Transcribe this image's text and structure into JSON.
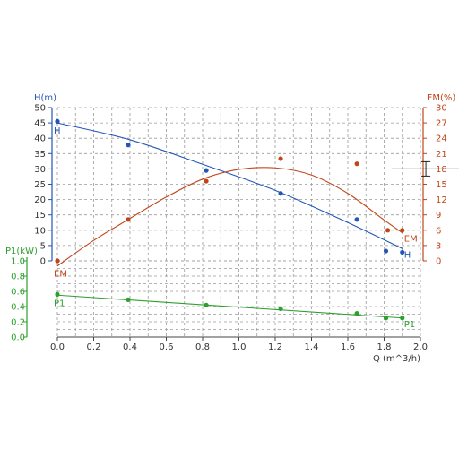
{
  "chart_data": {
    "type": "line",
    "xlabel": "Q (m^3/h)",
    "xlim": [
      0.0,
      2.0
    ],
    "xticks": [
      "0.0",
      "0.2",
      "0.4",
      "0.6",
      "0.8",
      "1.0",
      "1.2",
      "1.4",
      "1.6",
      "1.8",
      "2.0"
    ],
    "grid": true,
    "axes": {
      "H": {
        "label": "H(m)",
        "lim": [
          0,
          50
        ],
        "ticks": [
          "0",
          "5",
          "10",
          "15",
          "20",
          "25",
          "30",
          "35",
          "40",
          "45",
          "50"
        ],
        "color": "#2457b3"
      },
      "EM": {
        "label": "EM(%)",
        "lim": [
          0,
          30
        ],
        "ticks": [
          "0",
          "3",
          "6",
          "9",
          "12",
          "15",
          "18",
          "21",
          "24",
          "27",
          "30"
        ],
        "color": "#c0461a"
      },
      "P1": {
        "label": "P1(kW)",
        "lim": [
          0.0,
          1.0
        ],
        "ticks": [
          "0.0",
          "0.2",
          "0.4",
          "0.6",
          "0.8",
          "1.0"
        ],
        "color": "#2ca02c"
      }
    },
    "series": [
      {
        "name": "H",
        "axis": "H",
        "color": "#2457b3",
        "start_label": "H",
        "end_label": "H",
        "curve": {
          "x": [
            0.0,
            0.4,
            0.8,
            1.2,
            1.6,
            1.9
          ],
          "y": [
            45,
            39.5,
            31.5,
            23,
            12.5,
            4
          ]
        },
        "points": {
          "x": [
            0.0,
            0.39,
            0.82,
            1.23,
            1.65,
            1.81,
            1.9
          ],
          "y": [
            45.5,
            37.8,
            29.5,
            22.0,
            13.5,
            3.2,
            2.8
          ]
        }
      },
      {
        "name": "EM",
        "axis": "EM",
        "color": "#c0461a",
        "start_label": "EM",
        "end_label": "EM",
        "curve": {
          "x": [
            0.0,
            0.2,
            0.4,
            0.6,
            0.8,
            1.0,
            1.2,
            1.4,
            1.6,
            1.8,
            1.9
          ],
          "y": [
            -1.0,
            4.0,
            8.3,
            12.5,
            16.0,
            17.9,
            18.2,
            16.8,
            13.2,
            8.0,
            5.5
          ]
        },
        "points": {
          "x": [
            0.0,
            0.39,
            0.82,
            1.23,
            1.65,
            1.82,
            1.9
          ],
          "y": [
            0.0,
            8.1,
            15.6,
            20.0,
            19.0,
            6.0,
            6.0
          ]
        }
      },
      {
        "name": "P1",
        "axis": "P1",
        "color": "#2ca02c",
        "start_label": "P1",
        "end_label": "P1",
        "curve": {
          "x": [
            0.0,
            1.9
          ],
          "y": [
            0.55,
            0.25
          ]
        },
        "points": {
          "x": [
            0.0,
            0.39,
            0.82,
            1.23,
            1.65,
            1.81,
            1.9
          ],
          "y": [
            0.56,
            0.49,
            0.42,
            0.37,
            0.31,
            0.25,
            0.25
          ]
        }
      }
    ],
    "operating_point": {
      "x": 2.03,
      "y_EM": 18
    }
  }
}
